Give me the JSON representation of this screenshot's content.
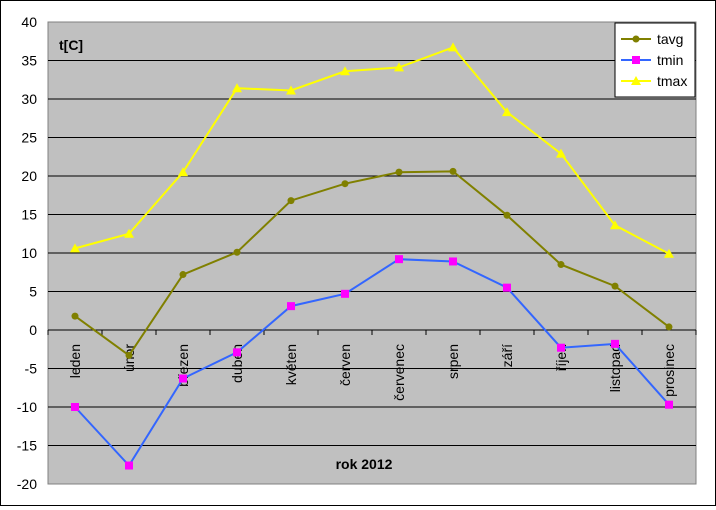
{
  "chart_data": {
    "type": "line",
    "title": "",
    "ylabel": "t[C]",
    "xlabel": "rok 2012",
    "categories": [
      "leden",
      "únor",
      "březen",
      "duben",
      "květen",
      "červen",
      "červenec",
      "srpen",
      "září",
      "říjen",
      "listopad",
      "prosinec"
    ],
    "ylim": [
      -20,
      40
    ],
    "ytick_step": 5,
    "y_ticks": [
      "40",
      "35",
      "30",
      "25",
      "20",
      "15",
      "10",
      "5",
      "0",
      "-5",
      "-10",
      "-15",
      "-20"
    ],
    "grid": true,
    "legend_position": "top-right",
    "plot_background": "#c0c0c0",
    "series": [
      {
        "name": "tavg",
        "color": "#808000",
        "marker": "circle",
        "values": [
          1.8,
          -3.3,
          7.2,
          10.1,
          16.8,
          19.0,
          20.5,
          20.6,
          14.9,
          8.5,
          5.7,
          0.4
        ]
      },
      {
        "name": "tmin",
        "color": "#3366ff",
        "marker": "square",
        "marker_color": "#ff00ff",
        "values": [
          -10.0,
          -17.6,
          -6.3,
          -2.9,
          3.1,
          4.7,
          9.2,
          8.9,
          5.5,
          -2.3,
          -1.8,
          -9.7
        ]
      },
      {
        "name": "tmax",
        "color": "#ffff00",
        "marker": "triangle",
        "values": [
          10.6,
          12.5,
          20.5,
          31.4,
          31.1,
          33.6,
          34.1,
          36.7,
          28.3,
          22.9,
          13.6,
          9.9
        ]
      }
    ]
  }
}
